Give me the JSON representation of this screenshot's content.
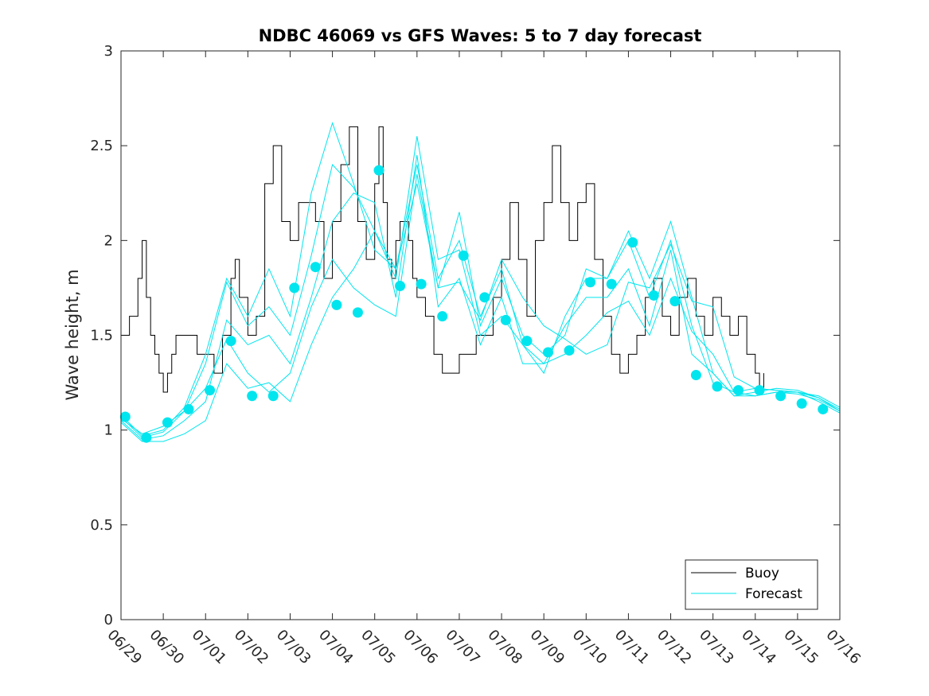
{
  "chart_data": {
    "type": "line",
    "title": "NDBC 46069 vs GFS Waves: 5 to 7 day forecast",
    "xlabel": "",
    "ylabel": "Wave height, m",
    "ylim": [
      0,
      3
    ],
    "yticks": [
      "0",
      "0.5",
      "1",
      "1.5",
      "2",
      "2.5",
      "3"
    ],
    "xlim": [
      "06/29",
      "07/16"
    ],
    "xticks": [
      "06/29",
      "06/30",
      "07/01",
      "07/02",
      "07/03",
      "07/04",
      "07/05",
      "07/06",
      "07/07",
      "07/08",
      "07/09",
      "07/10",
      "07/11",
      "07/12",
      "07/13",
      "07/14",
      "07/15",
      "07/16"
    ],
    "legend": {
      "placement": "bottom-right",
      "entries": [
        "Buoy",
        "Forecast"
      ]
    },
    "colors": {
      "buoy": "#000000",
      "forecast": "#00e5ee",
      "markers": "#00e5ee"
    },
    "series": [
      {
        "name": "Buoy",
        "x": [
          0.0,
          0.2,
          0.4,
          0.5,
          0.6,
          0.7,
          0.8,
          0.9,
          1.0,
          1.1,
          1.2,
          1.3,
          1.5,
          1.7,
          1.8,
          2.0,
          2.2,
          2.4,
          2.6,
          2.7,
          2.8,
          3.0,
          3.2,
          3.4,
          3.6,
          3.8,
          4.0,
          4.2,
          4.4,
          4.6,
          4.8,
          5.0,
          5.2,
          5.4,
          5.6,
          5.8,
          6.0,
          6.1,
          6.2,
          6.3,
          6.4,
          6.5,
          6.6,
          6.7,
          6.8,
          6.9,
          7.0,
          7.2,
          7.4,
          7.6,
          7.8,
          8.0,
          8.2,
          8.4,
          8.6,
          8.8,
          9.0,
          9.2,
          9.4,
          9.6,
          9.8,
          10.0,
          10.2,
          10.4,
          10.6,
          10.8,
          11.0,
          11.2,
          11.4,
          11.6,
          11.8,
          12.0,
          12.2,
          12.4,
          12.6,
          12.8,
          13.0,
          13.2,
          13.4,
          13.6,
          13.8,
          14.0,
          14.2,
          14.4,
          14.6,
          14.8,
          15.0,
          15.1,
          15.2
        ],
        "values": [
          1.5,
          1.6,
          1.8,
          2.0,
          1.7,
          1.5,
          1.4,
          1.3,
          1.2,
          1.3,
          1.4,
          1.5,
          1.5,
          1.5,
          1.4,
          1.4,
          1.3,
          1.5,
          1.8,
          1.9,
          1.7,
          1.5,
          1.6,
          2.3,
          2.5,
          2.1,
          2.0,
          2.2,
          2.2,
          2.1,
          1.8,
          2.1,
          2.4,
          2.6,
          2.1,
          1.9,
          2.3,
          2.6,
          2.2,
          1.9,
          1.8,
          2.0,
          2.1,
          2.1,
          2.0,
          1.8,
          1.7,
          1.6,
          1.4,
          1.3,
          1.3,
          1.4,
          1.4,
          1.5,
          1.5,
          1.7,
          1.9,
          2.2,
          1.9,
          1.6,
          2.0,
          2.2,
          2.5,
          2.2,
          2.0,
          2.2,
          2.3,
          1.9,
          1.6,
          1.4,
          1.3,
          1.4,
          1.5,
          1.7,
          1.8,
          1.6,
          1.5,
          1.7,
          1.8,
          1.6,
          1.5,
          1.7,
          1.6,
          1.5,
          1.6,
          1.4,
          1.3,
          1.2,
          1.3
        ]
      },
      {
        "name": "Forecast",
        "x": [
          0.0,
          0.5,
          1.0,
          1.5,
          2.0,
          2.5,
          3.0,
          3.5,
          4.0,
          4.5,
          5.0,
          5.5,
          6.0,
          6.5,
          7.0,
          7.5,
          8.0,
          8.5,
          9.0,
          9.5,
          10.0,
          10.5,
          11.0,
          11.5,
          12.0,
          12.5,
          13.0,
          13.5,
          14.0,
          14.5,
          15.0,
          15.5,
          16.0,
          16.5,
          17.0
        ],
        "values": [
          1.06,
          0.98,
          1.02,
          1.1,
          1.22,
          1.48,
          1.3,
          1.2,
          1.3,
          1.65,
          1.9,
          1.75,
          1.66,
          1.6,
          2.35,
          1.75,
          1.78,
          1.58,
          1.9,
          1.7,
          1.55,
          1.48,
          1.4,
          1.45,
          1.78,
          1.75,
          1.98,
          1.68,
          1.65,
          1.28,
          1.22,
          1.21,
          1.2,
          1.18,
          1.12
        ]
      },
      {
        "name": "",
        "x": [
          0.0,
          0.5,
          1.0,
          1.5,
          2.0,
          2.5,
          3.0,
          3.5,
          4.0,
          4.5,
          5.0,
          5.5,
          6.0,
          6.5,
          7.0,
          7.5,
          8.0,
          8.5,
          9.0,
          9.5,
          10.0,
          10.5,
          11.0,
          11.5,
          12.0,
          12.5,
          13.0,
          13.5,
          14.0,
          14.5,
          15.0,
          15.5,
          16.0,
          16.5,
          17.0
        ],
        "values": [
          1.04,
          0.94,
          0.94,
          0.98,
          1.05,
          1.35,
          1.22,
          1.25,
          1.15,
          1.45,
          1.7,
          1.85,
          2.05,
          1.8,
          2.55,
          1.9,
          1.95,
          1.5,
          1.6,
          1.45,
          1.35,
          1.4,
          1.5,
          1.62,
          1.68,
          1.5,
          1.8,
          1.52,
          1.4,
          1.2,
          1.18,
          1.2,
          1.19,
          1.16,
          1.1
        ]
      },
      {
        "name": "",
        "x": [
          0.0,
          0.5,
          1.0,
          1.5,
          2.0,
          2.5,
          3.0,
          3.5,
          4.0,
          4.5,
          5.0,
          5.5,
          6.0,
          6.5,
          7.0,
          7.5,
          8.0,
          8.5,
          9.0,
          9.5,
          10.0,
          10.5,
          11.0,
          11.5,
          12.0,
          12.5,
          13.0,
          13.5,
          14.0,
          14.5,
          15.0,
          15.5,
          16.0,
          16.5,
          17.0
        ],
        "values": [
          1.05,
          0.95,
          0.97,
          1.05,
          1.15,
          1.58,
          1.45,
          1.5,
          1.35,
          1.7,
          2.1,
          2.25,
          2.2,
          1.7,
          2.45,
          1.65,
          1.8,
          1.45,
          1.7,
          1.35,
          1.35,
          1.55,
          1.7,
          1.7,
          1.85,
          1.55,
          1.95,
          1.4,
          1.3,
          1.18,
          1.18,
          1.2,
          1.2,
          1.15,
          1.09
        ]
      },
      {
        "name": "",
        "x": [
          0.0,
          0.5,
          1.0,
          1.5,
          2.0,
          2.5,
          3.0,
          3.5,
          4.0,
          4.5,
          5.0,
          5.5,
          6.0,
          6.5,
          7.0,
          7.5,
          8.0,
          8.5,
          9.0,
          9.5,
          10.0,
          10.5,
          11.0,
          11.5,
          12.0,
          12.5,
          13.0,
          13.5,
          14.0,
          14.5,
          15.0,
          15.5,
          16.0,
          16.5,
          17.0
        ],
        "values": [
          1.07,
          0.96,
          0.99,
          1.1,
          1.35,
          1.78,
          1.55,
          1.65,
          1.5,
          1.92,
          2.4,
          2.28,
          2.05,
          1.85,
          2.4,
          1.8,
          2.0,
          1.6,
          1.85,
          1.45,
          1.3,
          1.6,
          1.8,
          1.8,
          2.0,
          1.7,
          2.0,
          1.55,
          1.25,
          1.2,
          1.22,
          1.21,
          1.2,
          1.17,
          1.1
        ]
      },
      {
        "name": "",
        "x": [
          0.0,
          0.5,
          1.0,
          1.5,
          2.0,
          2.5,
          3.0,
          3.5,
          4.0,
          4.5,
          5.0,
          5.5,
          6.0,
          6.5,
          7.0,
          7.5,
          8.0,
          8.5,
          9.0,
          9.5,
          10.0,
          10.5,
          11.0,
          11.5,
          12.0,
          12.5,
          13.0,
          13.5,
          14.0,
          14.5,
          15.0,
          15.5,
          16.0,
          16.5,
          17.0
        ],
        "values": [
          1.08,
          0.97,
          1.0,
          1.12,
          1.4,
          1.8,
          1.6,
          1.85,
          1.6,
          2.25,
          2.62,
          2.3,
          1.95,
          1.85,
          2.3,
          1.75,
          2.15,
          1.55,
          1.8,
          1.5,
          1.4,
          1.5,
          1.85,
          1.8,
          2.05,
          1.8,
          2.1,
          1.7,
          1.3,
          1.18,
          1.2,
          1.22,
          1.21,
          1.17,
          1.11
        ]
      }
    ],
    "markers": {
      "x": [
        0.1,
        0.6,
        1.1,
        1.6,
        2.1,
        2.6,
        3.1,
        3.6,
        4.1,
        4.6,
        5.1,
        5.6,
        6.1,
        6.6,
        7.1,
        7.6,
        8.1,
        8.6,
        9.1,
        9.6,
        10.1,
        10.6,
        11.1,
        11.6,
        12.1,
        12.6,
        13.1,
        13.6,
        14.1,
        14.6,
        15.1,
        15.6,
        16.1,
        16.6
      ],
      "values": [
        1.07,
        0.96,
        1.04,
        1.11,
        1.21,
        1.47,
        1.18,
        1.18,
        1.75,
        1.86,
        1.66,
        1.62,
        2.37,
        1.76,
        1.77,
        1.6,
        1.92,
        1.7,
        1.58,
        1.47,
        1.41,
        1.42,
        1.78,
        1.77,
        1.99,
        1.71,
        1.68,
        1.29,
        1.23,
        1.21,
        1.21,
        1.18,
        1.14,
        1.11
      ]
    }
  }
}
